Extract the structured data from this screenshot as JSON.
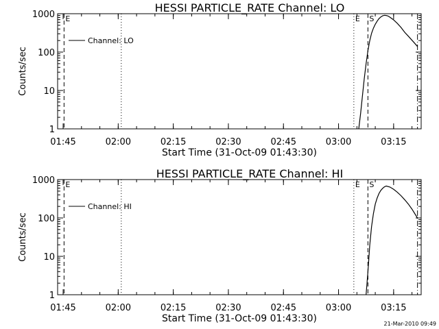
{
  "chart_data": [
    {
      "type": "line",
      "title": "HESSI PARTICLE_RATE Channel: LO",
      "xlabel": "Start Time (31-Oct-09 01:43:30)",
      "ylabel": "Counts/sec",
      "y_scale": "log",
      "ylim": [
        1,
        1000
      ],
      "xlim": [
        "01:43:30",
        "03:22:30"
      ],
      "x_ticks": [
        "01:45",
        "02:00",
        "02:15",
        "02:30",
        "02:45",
        "03:00",
        "03:15"
      ],
      "y_ticks": [
        "1",
        "10",
        "100",
        "1000"
      ],
      "legend": {
        "placement": "top-left",
        "entries": [
          "Channel: LO"
        ]
      },
      "series": [
        {
          "name": "Channel: LO",
          "x": [
            "03:05:30",
            "03:06:00",
            "03:06:30",
            "03:07:00",
            "03:07:30",
            "03:08:00",
            "03:08:30",
            "03:09:00",
            "03:09:30",
            "03:10:00",
            "03:10:30",
            "03:11:00",
            "03:11:30",
            "03:12:00",
            "03:12:30",
            "03:13:00",
            "03:13:30",
            "03:14:00",
            "03:15:00",
            "03:16:00",
            "03:17:00",
            "03:18:00",
            "03:19:00",
            "03:20:30",
            "03:21:30"
          ],
          "y": [
            1,
            2.5,
            7,
            20,
            50,
            110,
            200,
            310,
            420,
            530,
            640,
            740,
            820,
            880,
            910,
            900,
            870,
            810,
            690,
            560,
            440,
            330,
            260,
            180,
            140
          ]
        }
      ],
      "vertical_markers": [
        {
          "x": "01:45:15",
          "style": "dashed",
          "label": "E"
        },
        {
          "x": "02:00:50",
          "style": "dotted",
          "label": ""
        },
        {
          "x": "03:04:10",
          "style": "dotted",
          "label": "E"
        },
        {
          "x": "03:08:00",
          "style": "dashed",
          "label": "S"
        },
        {
          "x": "03:21:30",
          "style": "dash-dot",
          "label": ""
        }
      ]
    },
    {
      "type": "line",
      "title": "HESSI PARTICLE_RATE Channel: HI",
      "xlabel": "Start Time (31-Oct-09 01:43:30)",
      "ylabel": "Counts/sec",
      "y_scale": "log",
      "ylim": [
        1,
        1000
      ],
      "xlim": [
        "01:43:30",
        "03:22:30"
      ],
      "x_ticks": [
        "01:45",
        "02:00",
        "02:15",
        "02:30",
        "02:45",
        "03:00",
        "03:15"
      ],
      "y_ticks": [
        "1",
        "10",
        "100",
        "1000"
      ],
      "legend": {
        "placement": "top-left",
        "entries": [
          "Channel: HI"
        ]
      },
      "series": [
        {
          "name": "Channel: HI",
          "x": [
            "03:07:30",
            "03:08:00",
            "03:08:30",
            "03:09:00",
            "03:09:30",
            "03:10:00",
            "03:10:30",
            "03:11:00",
            "03:11:30",
            "03:12:00",
            "03:12:30",
            "03:13:00",
            "03:14:00",
            "03:15:00",
            "03:16:00",
            "03:17:00",
            "03:18:00",
            "03:19:00",
            "03:20:00",
            "03:21:30"
          ],
          "y": [
            1,
            4,
            20,
            60,
            130,
            230,
            330,
            430,
            520,
            590,
            650,
            680,
            640,
            560,
            470,
            380,
            300,
            230,
            170,
            100
          ]
        }
      ],
      "vertical_markers": [
        {
          "x": "01:45:15",
          "style": "dashed",
          "label": "E"
        },
        {
          "x": "02:00:50",
          "style": "dotted",
          "label": ""
        },
        {
          "x": "03:04:10",
          "style": "dotted",
          "label": "E"
        },
        {
          "x": "03:08:00",
          "style": "dashed",
          "label": "S"
        },
        {
          "x": "03:21:30",
          "style": "dash-dot",
          "label": ""
        }
      ]
    }
  ],
  "timestamp": "21-Mar-2010 09:49"
}
